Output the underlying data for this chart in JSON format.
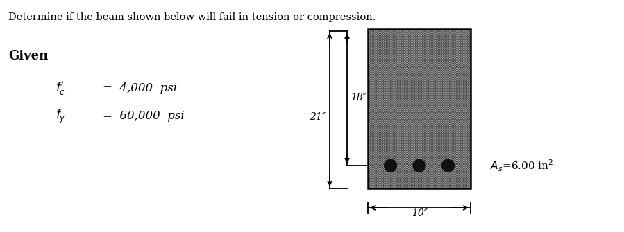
{
  "title": "Determine if the beam shown below will fail in tension or compression.",
  "given_label": "Given",
  "fc_value": "=  4,000  psi",
  "fy_value": "=  60,000  psi",
  "dim_21": "21″",
  "dim_18": "18″",
  "dim_10": "10″",
  "As_label": "A_s=6.00 in",
  "bg_color": "#ffffff",
  "beam_edge_color": "#000000",
  "rebar_color": "#111111",
  "text_color": "#000000"
}
